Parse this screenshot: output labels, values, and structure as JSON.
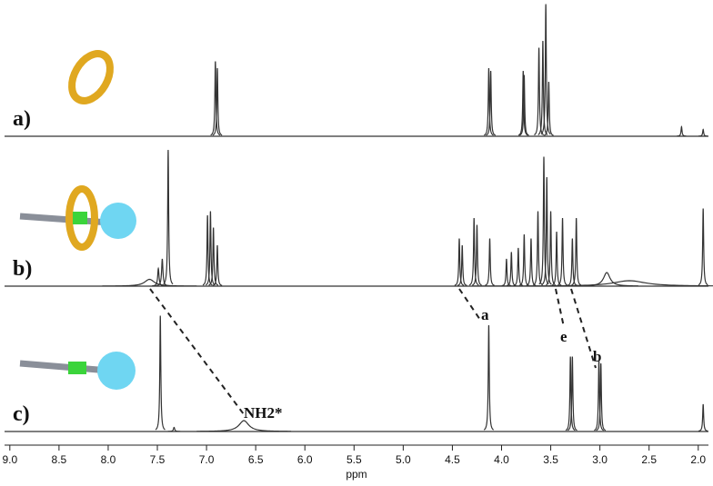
{
  "chart_data": {
    "type": "spectrum",
    "x_label": "ppm",
    "xlim": [
      9.1,
      1.85
    ],
    "xticks": [
      {
        "value": 9,
        "label": "9.0"
      },
      {
        "value": 8.5,
        "label": "8.5"
      },
      {
        "value": 8,
        "label": "8.0"
      },
      {
        "value": 7.5,
        "label": "7.5"
      },
      {
        "value": 7,
        "label": "7.0"
      },
      {
        "value": 6.5,
        "label": "6.5"
      },
      {
        "value": 6,
        "label": "6.0"
      },
      {
        "value": 5.5,
        "label": "5.5"
      },
      {
        "value": 5,
        "label": "5.0"
      },
      {
        "value": 4.5,
        "label": "4.5"
      },
      {
        "value": 4,
        "label": "4.0"
      },
      {
        "value": 3.5,
        "label": "3.5"
      },
      {
        "value": 3,
        "label": "3.0"
      },
      {
        "value": 2.5,
        "label": "2.5"
      },
      {
        "value": 2,
        "label": "2.0"
      }
    ],
    "ylim": [
      0,
      100
    ],
    "color": "#333333",
    "spectra": [
      {
        "name": "a)",
        "positions": [
          6.91,
          6.89,
          4.13,
          4.11,
          3.78,
          3.77,
          3.62,
          3.58,
          3.55,
          3.52,
          2.17,
          1.95
        ],
        "heights": [
          55,
          50,
          50,
          48,
          48,
          45,
          65,
          70,
          97,
          40,
          7,
          5
        ],
        "widths": [
          0.006,
          0.006,
          0.006,
          0.006,
          0.006,
          0.006,
          0.006,
          0.006,
          0.006,
          0.006,
          0.006,
          0.006
        ]
      },
      {
        "name": "b)",
        "positions": [
          7.58,
          7.49,
          7.45,
          7.39,
          6.99,
          6.96,
          6.93,
          6.89,
          4.43,
          4.4,
          4.28,
          4.25,
          4.12,
          3.95,
          3.9,
          3.83,
          3.77,
          3.7,
          3.63,
          3.57,
          3.54,
          3.5,
          3.44,
          3.38,
          3.28,
          3.24,
          2.93,
          2.7,
          1.95
        ],
        "heights": [
          5,
          13,
          20,
          100,
          52,
          55,
          43,
          30,
          35,
          30,
          50,
          45,
          35,
          20,
          25,
          28,
          38,
          35,
          55,
          95,
          80,
          55,
          40,
          50,
          35,
          50,
          10,
          4,
          57
        ],
        "widths": [
          0.06,
          0.008,
          0.008,
          0.006,
          0.006,
          0.006,
          0.006,
          0.006,
          0.006,
          0.006,
          0.006,
          0.006,
          0.006,
          0.006,
          0.006,
          0.006,
          0.006,
          0.006,
          0.006,
          0.006,
          0.006,
          0.006,
          0.006,
          0.006,
          0.006,
          0.006,
          0.04,
          0.2,
          0.006
        ]
      },
      {
        "name": "c)",
        "positions": [
          7.47,
          7.33,
          6.62,
          4.13,
          3.3,
          3.28,
          3.01,
          2.99,
          1.95
        ],
        "heights": [
          85,
          3,
          8,
          78,
          55,
          55,
          53,
          50,
          20
        ],
        "widths": [
          0.006,
          0.008,
          0.06,
          0.006,
          0.006,
          0.006,
          0.006,
          0.006,
          0.006
        ]
      }
    ],
    "annotations": [
      "NH2*",
      "a",
      "e",
      "b"
    ]
  }
}
